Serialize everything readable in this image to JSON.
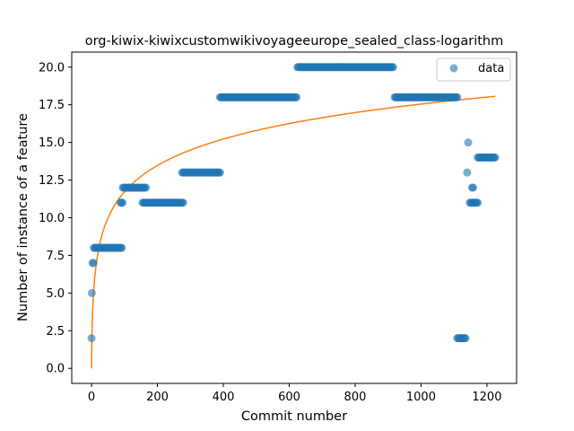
{
  "chart_data": {
    "type": "scatter",
    "title": "org-kiwix-kiwixcustomwikivoyageeurope_sealed_class-logarithm",
    "xlabel": "Commit number",
    "ylabel": "Number of instance of a feature",
    "xlim": [
      -60,
      1290
    ],
    "ylim": [
      -1.0,
      21.0
    ],
    "xticks": [
      0,
      200,
      400,
      600,
      800,
      1000,
      1200
    ],
    "xtick_labels": [
      "0",
      "200",
      "400",
      "600",
      "800",
      "1000",
      "1200"
    ],
    "yticks": [
      0.0,
      2.5,
      5.0,
      7.5,
      10.0,
      12.5,
      15.0,
      17.5,
      20.0
    ],
    "ytick_labels": [
      "0.0",
      "2.5",
      "5.0",
      "7.5",
      "10.0",
      "12.5",
      "15.0",
      "17.5",
      "20.0"
    ],
    "legend": {
      "position": "top-right",
      "entries": [
        "data"
      ]
    },
    "colors": {
      "data": "#1f77b4",
      "fit": "#ff7f0e"
    },
    "series": [
      {
        "name": "data",
        "kind": "points",
        "segments": [
          {
            "x_start": 0,
            "x_end": 0,
            "y": 2
          },
          {
            "x_start": 1,
            "x_end": 2,
            "y": 5
          },
          {
            "x_start": 3,
            "x_end": 6,
            "y": 7
          },
          {
            "x_start": 7,
            "x_end": 92,
            "y": 8
          },
          {
            "x_start": 88,
            "x_end": 94,
            "y": 11
          },
          {
            "x_start": 95,
            "x_end": 165,
            "y": 12
          },
          {
            "x_start": 155,
            "x_end": 278,
            "y": 11
          },
          {
            "x_start": 275,
            "x_end": 390,
            "y": 13
          },
          {
            "x_start": 390,
            "x_end": 622,
            "y": 18
          },
          {
            "x_start": 625,
            "x_end": 915,
            "y": 20
          },
          {
            "x_start": 920,
            "x_end": 1110,
            "y": 18
          },
          {
            "x_start": 1110,
            "x_end": 1135,
            "y": 2
          },
          {
            "x_start": 1140,
            "x_end": 1140,
            "y": 13
          },
          {
            "x_start": 1143,
            "x_end": 1143,
            "y": 15
          },
          {
            "x_start": 1148,
            "x_end": 1172,
            "y": 11
          },
          {
            "x_start": 1155,
            "x_end": 1158,
            "y": 12
          },
          {
            "x_start": 1172,
            "x_end": 1225,
            "y": 14
          }
        ]
      },
      {
        "kind": "fit-curve",
        "model": "y = a * ln(x + 1) + b",
        "a": 2.54,
        "b": 0.0,
        "x_range": [
          0,
          1225
        ]
      }
    ]
  }
}
